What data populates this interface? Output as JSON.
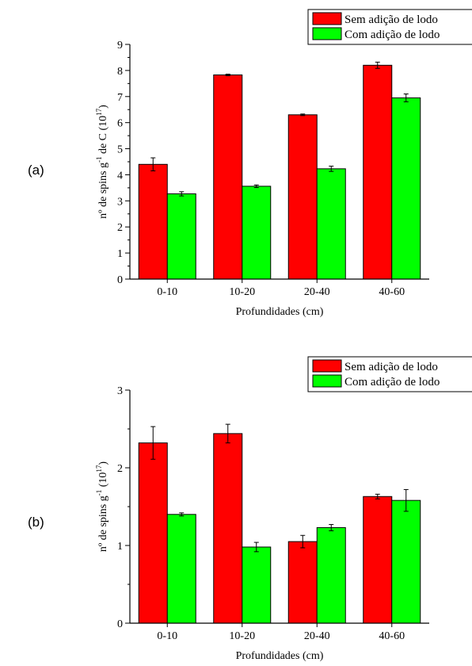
{
  "chart_data": [
    {
      "type": "bar",
      "panel_label": "(a)",
      "categories": [
        "0-10",
        "10-20",
        "20-40",
        "40-60"
      ],
      "series": [
        {
          "name": "Sem adição de lodo",
          "color": "#ff0000",
          "values": [
            4.4,
            7.83,
            6.3,
            8.2
          ],
          "errors": [
            0.25,
            0.03,
            0.03,
            0.12
          ]
        },
        {
          "name": "Com adição de lodo",
          "color": "#00ff00",
          "values": [
            3.27,
            3.56,
            4.23,
            6.95
          ],
          "errors": [
            0.08,
            0.05,
            0.1,
            0.15
          ]
        }
      ],
      "xlabel": "Profundidades (cm)",
      "ylabel_main": "nº de spins g",
      "ylabel_sup1": "-1",
      "ylabel_mid": " de C (10",
      "ylabel_sup2": "17",
      "ylabel_end": ")",
      "ylim": [
        0,
        9
      ],
      "yticks": [
        "0",
        "1",
        "2",
        "3",
        "4",
        "5",
        "6",
        "7",
        "8",
        "9"
      ],
      "legend_position": "top-right"
    },
    {
      "type": "bar",
      "panel_label": "(b)",
      "categories": [
        "0-10",
        "10-20",
        "20-40",
        "40-60"
      ],
      "series": [
        {
          "name": "Sem adição de lodo",
          "color": "#ff0000",
          "values": [
            2.32,
            2.44,
            1.05,
            1.63
          ],
          "errors": [
            0.21,
            0.12,
            0.08,
            0.03
          ]
        },
        {
          "name": "Com adição de lodo",
          "color": "#00ff00",
          "values": [
            1.4,
            0.98,
            1.23,
            1.58
          ],
          "errors": [
            0.02,
            0.06,
            0.04,
            0.14
          ]
        }
      ],
      "xlabel": "Profundidades (cm)",
      "ylabel_main": "nº de spins g",
      "ylabel_sup1": "-1",
      "ylabel_mid": " (10",
      "ylabel_sup2": "17",
      "ylabel_end": ")",
      "ylim": [
        0,
        3
      ],
      "yticks": [
        "0",
        "1",
        "2",
        "3"
      ],
      "legend_position": "top-right"
    }
  ]
}
